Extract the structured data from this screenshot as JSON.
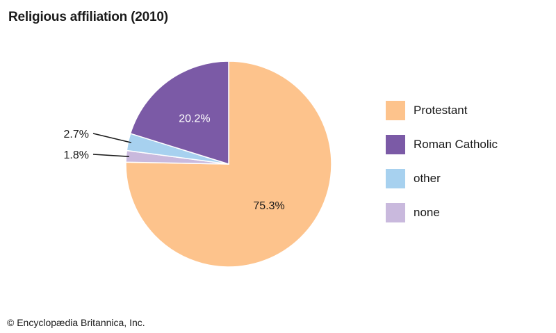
{
  "chart_data": {
    "type": "pie",
    "title": "Religious affiliation (2010)",
    "slices": [
      {
        "label": "Protestant",
        "value": 75.3,
        "display": "75.3%",
        "color": "#fdc38c",
        "label_color": "#1a1a1a"
      },
      {
        "label": "none",
        "value": 1.8,
        "display": "1.8%",
        "color": "#c9b9dd",
        "label_color": "#1a1a1a"
      },
      {
        "label": "other",
        "value": 2.7,
        "display": "2.7%",
        "color": "#a7d1ef",
        "label_color": "#1a1a1a"
      },
      {
        "label": "Roman Catholic",
        "value": 20.2,
        "display": "20.2%",
        "color": "#7b5aa6",
        "label_color": "#ffffff"
      }
    ],
    "legend": [
      "Protestant",
      "Roman Catholic",
      "other",
      "none"
    ],
    "legend_position": "right",
    "start": "12 o'clock",
    "direction": "clockwise"
  },
  "footer": {
    "copyright": "© Encyclopædia Britannica, Inc."
  }
}
